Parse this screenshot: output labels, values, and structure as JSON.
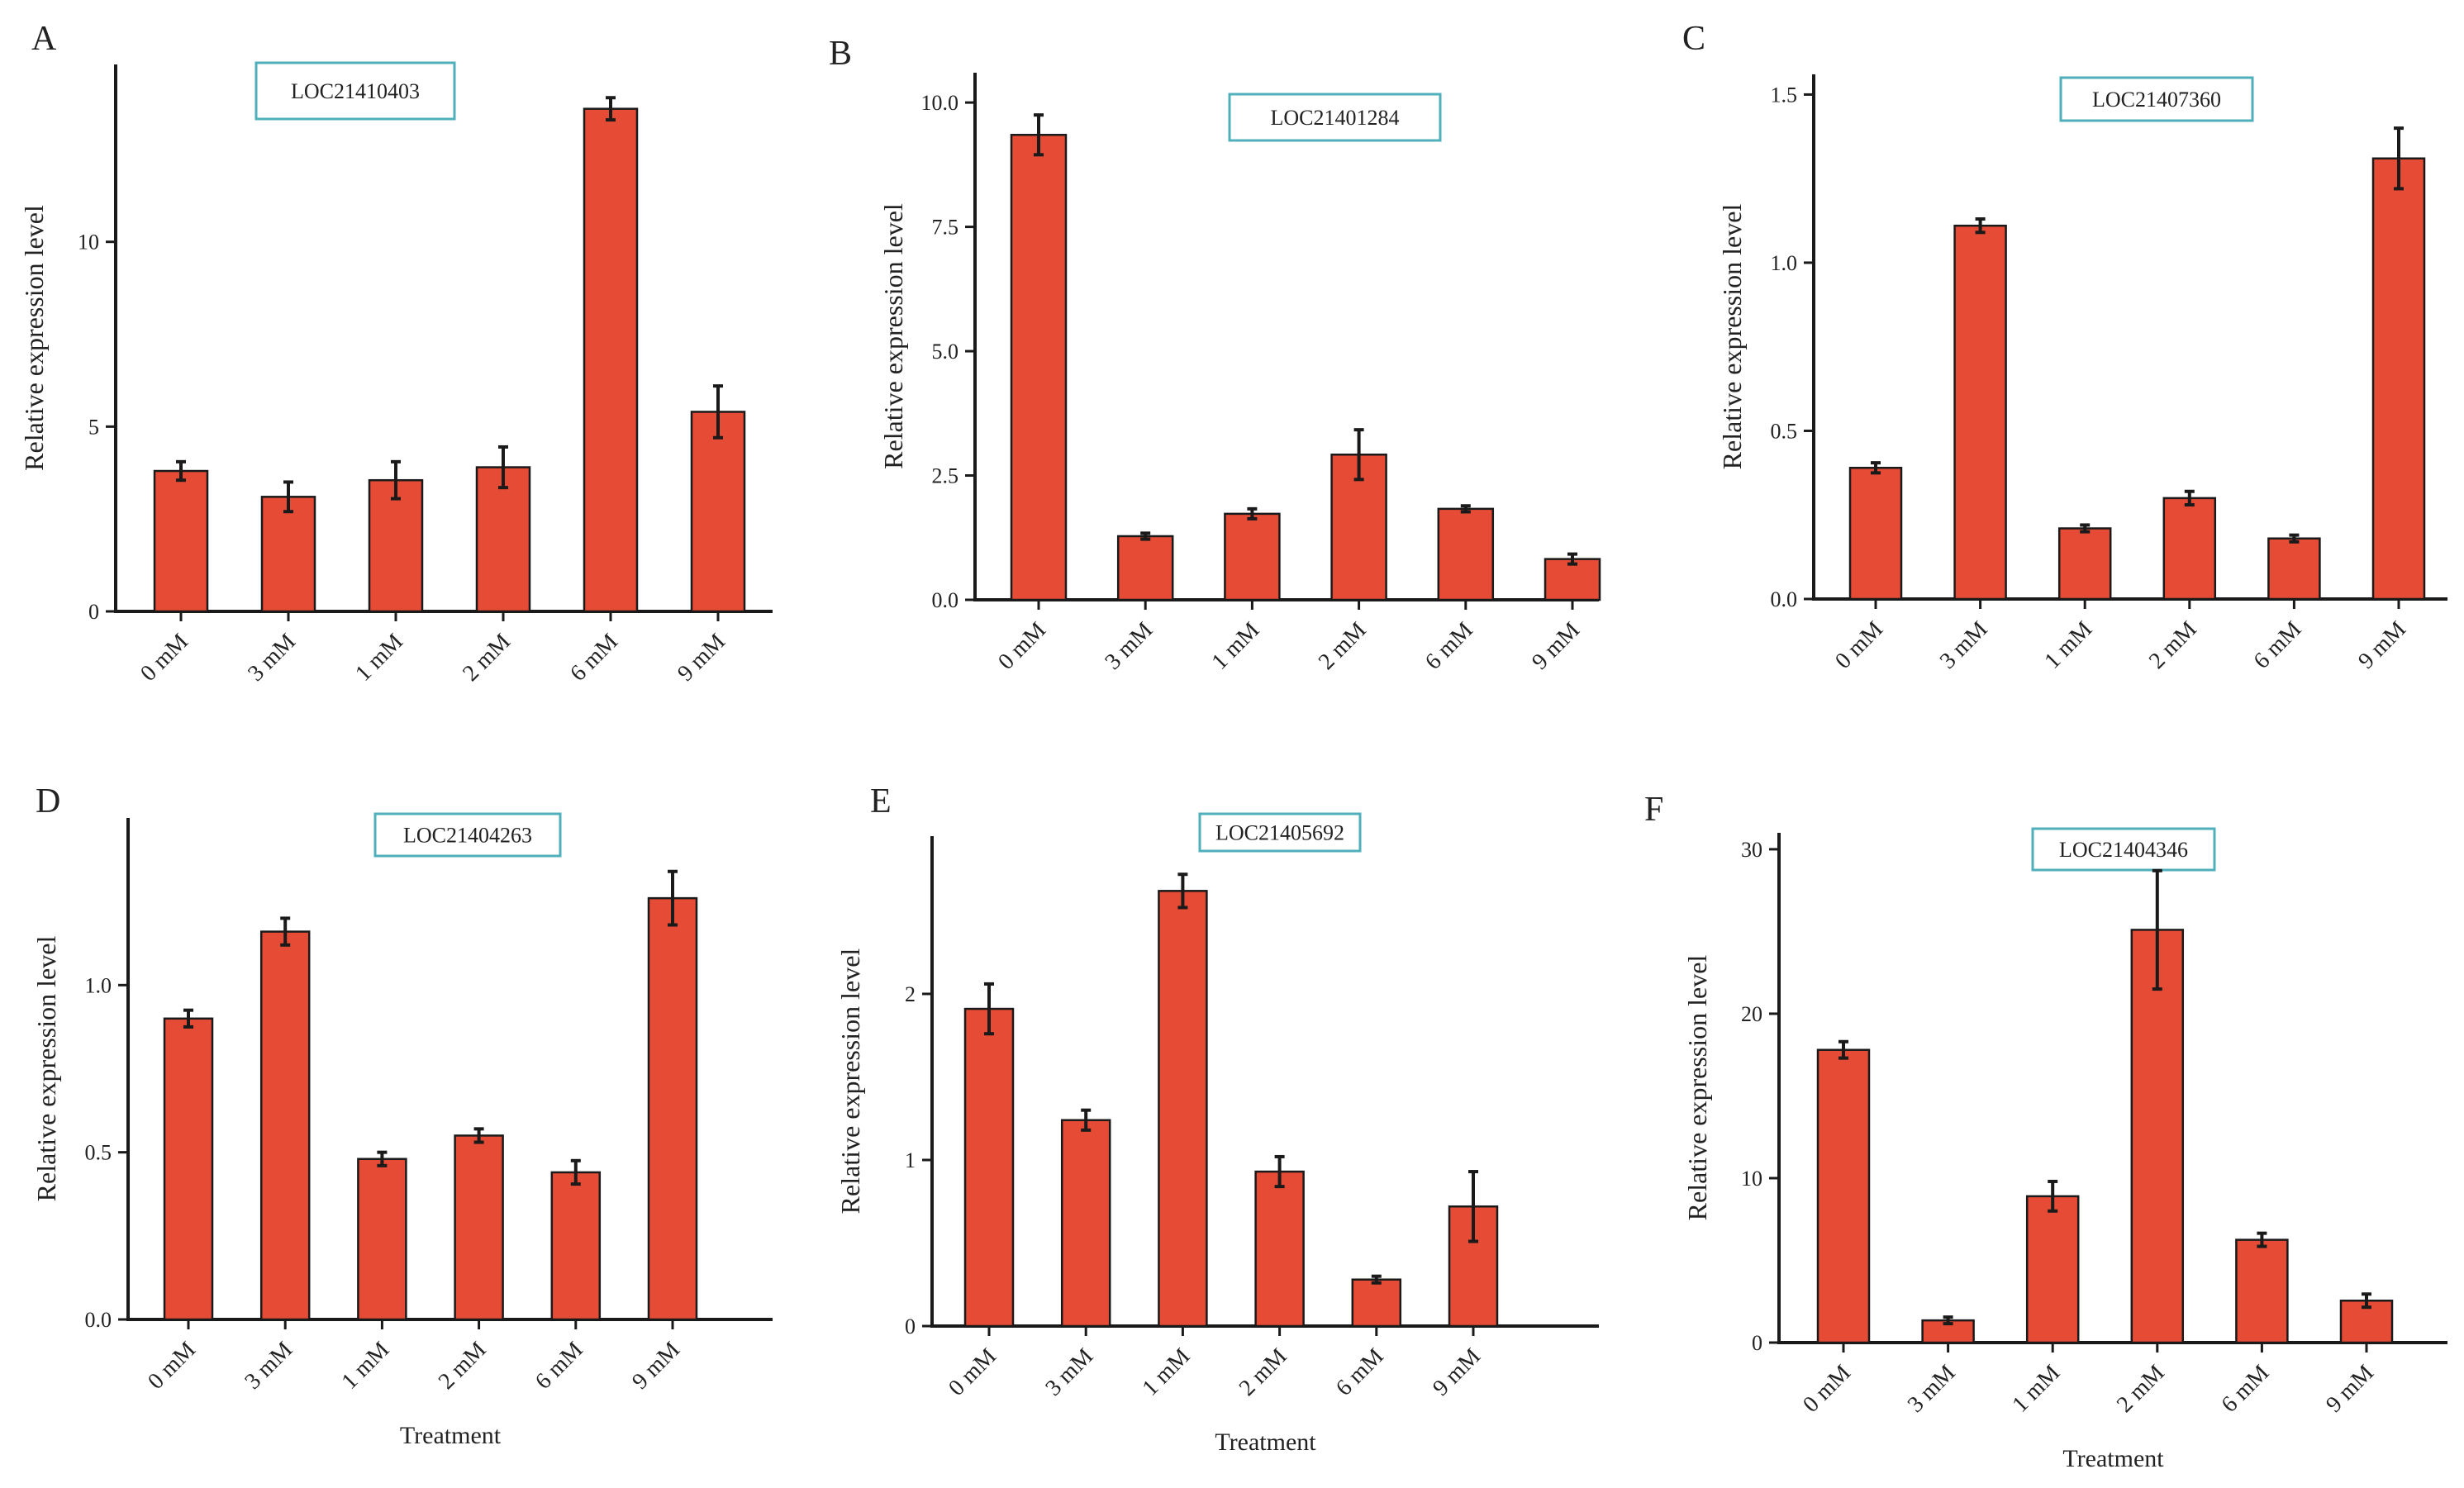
{
  "colors": {
    "bar_fill": "#E64B35",
    "bar_stroke": "#1a1a1a",
    "axis": "#1a1a1a",
    "gene_box_border": "#4FB0BC"
  },
  "chart_data": [
    {
      "panel": "A",
      "type": "bar",
      "gene": "LOC21410403",
      "categories": [
        "0 mM",
        "3 mM",
        "1 mM",
        "2 mM",
        "6 mM",
        "9 mM"
      ],
      "values": [
        3.8,
        3.1,
        3.55,
        3.9,
        13.6,
        5.4
      ],
      "errors": [
        0.25,
        0.4,
        0.5,
        0.55,
        0.3,
        0.7
      ],
      "ylabel": "Relative expression level",
      "xlabel": "",
      "ylim": [
        0,
        14.8
      ],
      "yticks": [
        0,
        5,
        10
      ],
      "grid": false
    },
    {
      "panel": "B",
      "type": "bar",
      "gene": "LOC21401284",
      "categories": [
        "0 mM",
        "3 mM",
        "1 mM",
        "2 mM",
        "6 mM",
        "9 mM"
      ],
      "values": [
        9.35,
        1.28,
        1.73,
        2.92,
        1.83,
        0.82
      ],
      "errors": [
        0.4,
        0.06,
        0.1,
        0.5,
        0.06,
        0.1
      ],
      "ylabel": "Relative expression level",
      "xlabel": "",
      "ylim": [
        0,
        10.6
      ],
      "yticks": [
        0.0,
        2.5,
        5.0,
        7.5,
        10.0
      ],
      "grid": false
    },
    {
      "panel": "C",
      "type": "bar",
      "gene": "LOC21407360",
      "categories": [
        "0 mM",
        "3 mM",
        "1 mM",
        "2 mM",
        "6 mM",
        "9 mM"
      ],
      "values": [
        0.39,
        1.11,
        0.21,
        0.3,
        0.18,
        1.31
      ],
      "errors": [
        0.015,
        0.02,
        0.01,
        0.02,
        0.01,
        0.09
      ],
      "ylabel": "Relative expression level",
      "xlabel": "",
      "ylim": [
        0,
        1.56
      ],
      "yticks": [
        0.0,
        0.5,
        1.0,
        1.5
      ],
      "grid": false
    },
    {
      "panel": "D",
      "type": "bar",
      "gene": "LOC21404263",
      "categories": [
        "0 mM",
        "3 mM",
        "1 mM",
        "2 mM",
        "6 mM",
        "9 mM"
      ],
      "values": [
        0.9,
        1.16,
        0.48,
        0.55,
        0.44,
        1.26
      ],
      "errors": [
        0.025,
        0.04,
        0.02,
        0.02,
        0.035,
        0.08
      ],
      "ylabel": "Relative expression level",
      "xlabel": "Treatment",
      "ylim": [
        0,
        1.5
      ],
      "yticks": [
        0.0,
        0.5,
        1.0
      ],
      "grid": false
    },
    {
      "panel": "E",
      "type": "bar",
      "gene": "LOC21405692",
      "categories": [
        "0 mM",
        "3 mM",
        "1 mM",
        "2 mM",
        "6 mM",
        "9 mM"
      ],
      "values": [
        1.91,
        1.24,
        2.62,
        0.93,
        0.28,
        0.72
      ],
      "errors": [
        0.15,
        0.06,
        0.1,
        0.09,
        0.02,
        0.21
      ],
      "ylabel": "Relative expression level",
      "xlabel": "Treatment",
      "ylim": [
        0,
        2.95
      ],
      "yticks": [
        0,
        1,
        2
      ],
      "grid": false
    },
    {
      "panel": "F",
      "type": "bar",
      "gene": "LOC21404346",
      "categories": [
        "0 mM",
        "3 mM",
        "1 mM",
        "2 mM",
        "6 mM",
        "9 mM"
      ],
      "values": [
        17.8,
        1.35,
        8.9,
        25.1,
        6.25,
        2.55
      ],
      "errors": [
        0.5,
        0.2,
        0.9,
        3.6,
        0.4,
        0.4
      ],
      "ylabel": "Relative expression level",
      "xlabel": "Treatment",
      "ylim": [
        0,
        31
      ],
      "yticks": [
        0,
        10,
        20,
        30
      ],
      "grid": false
    }
  ]
}
